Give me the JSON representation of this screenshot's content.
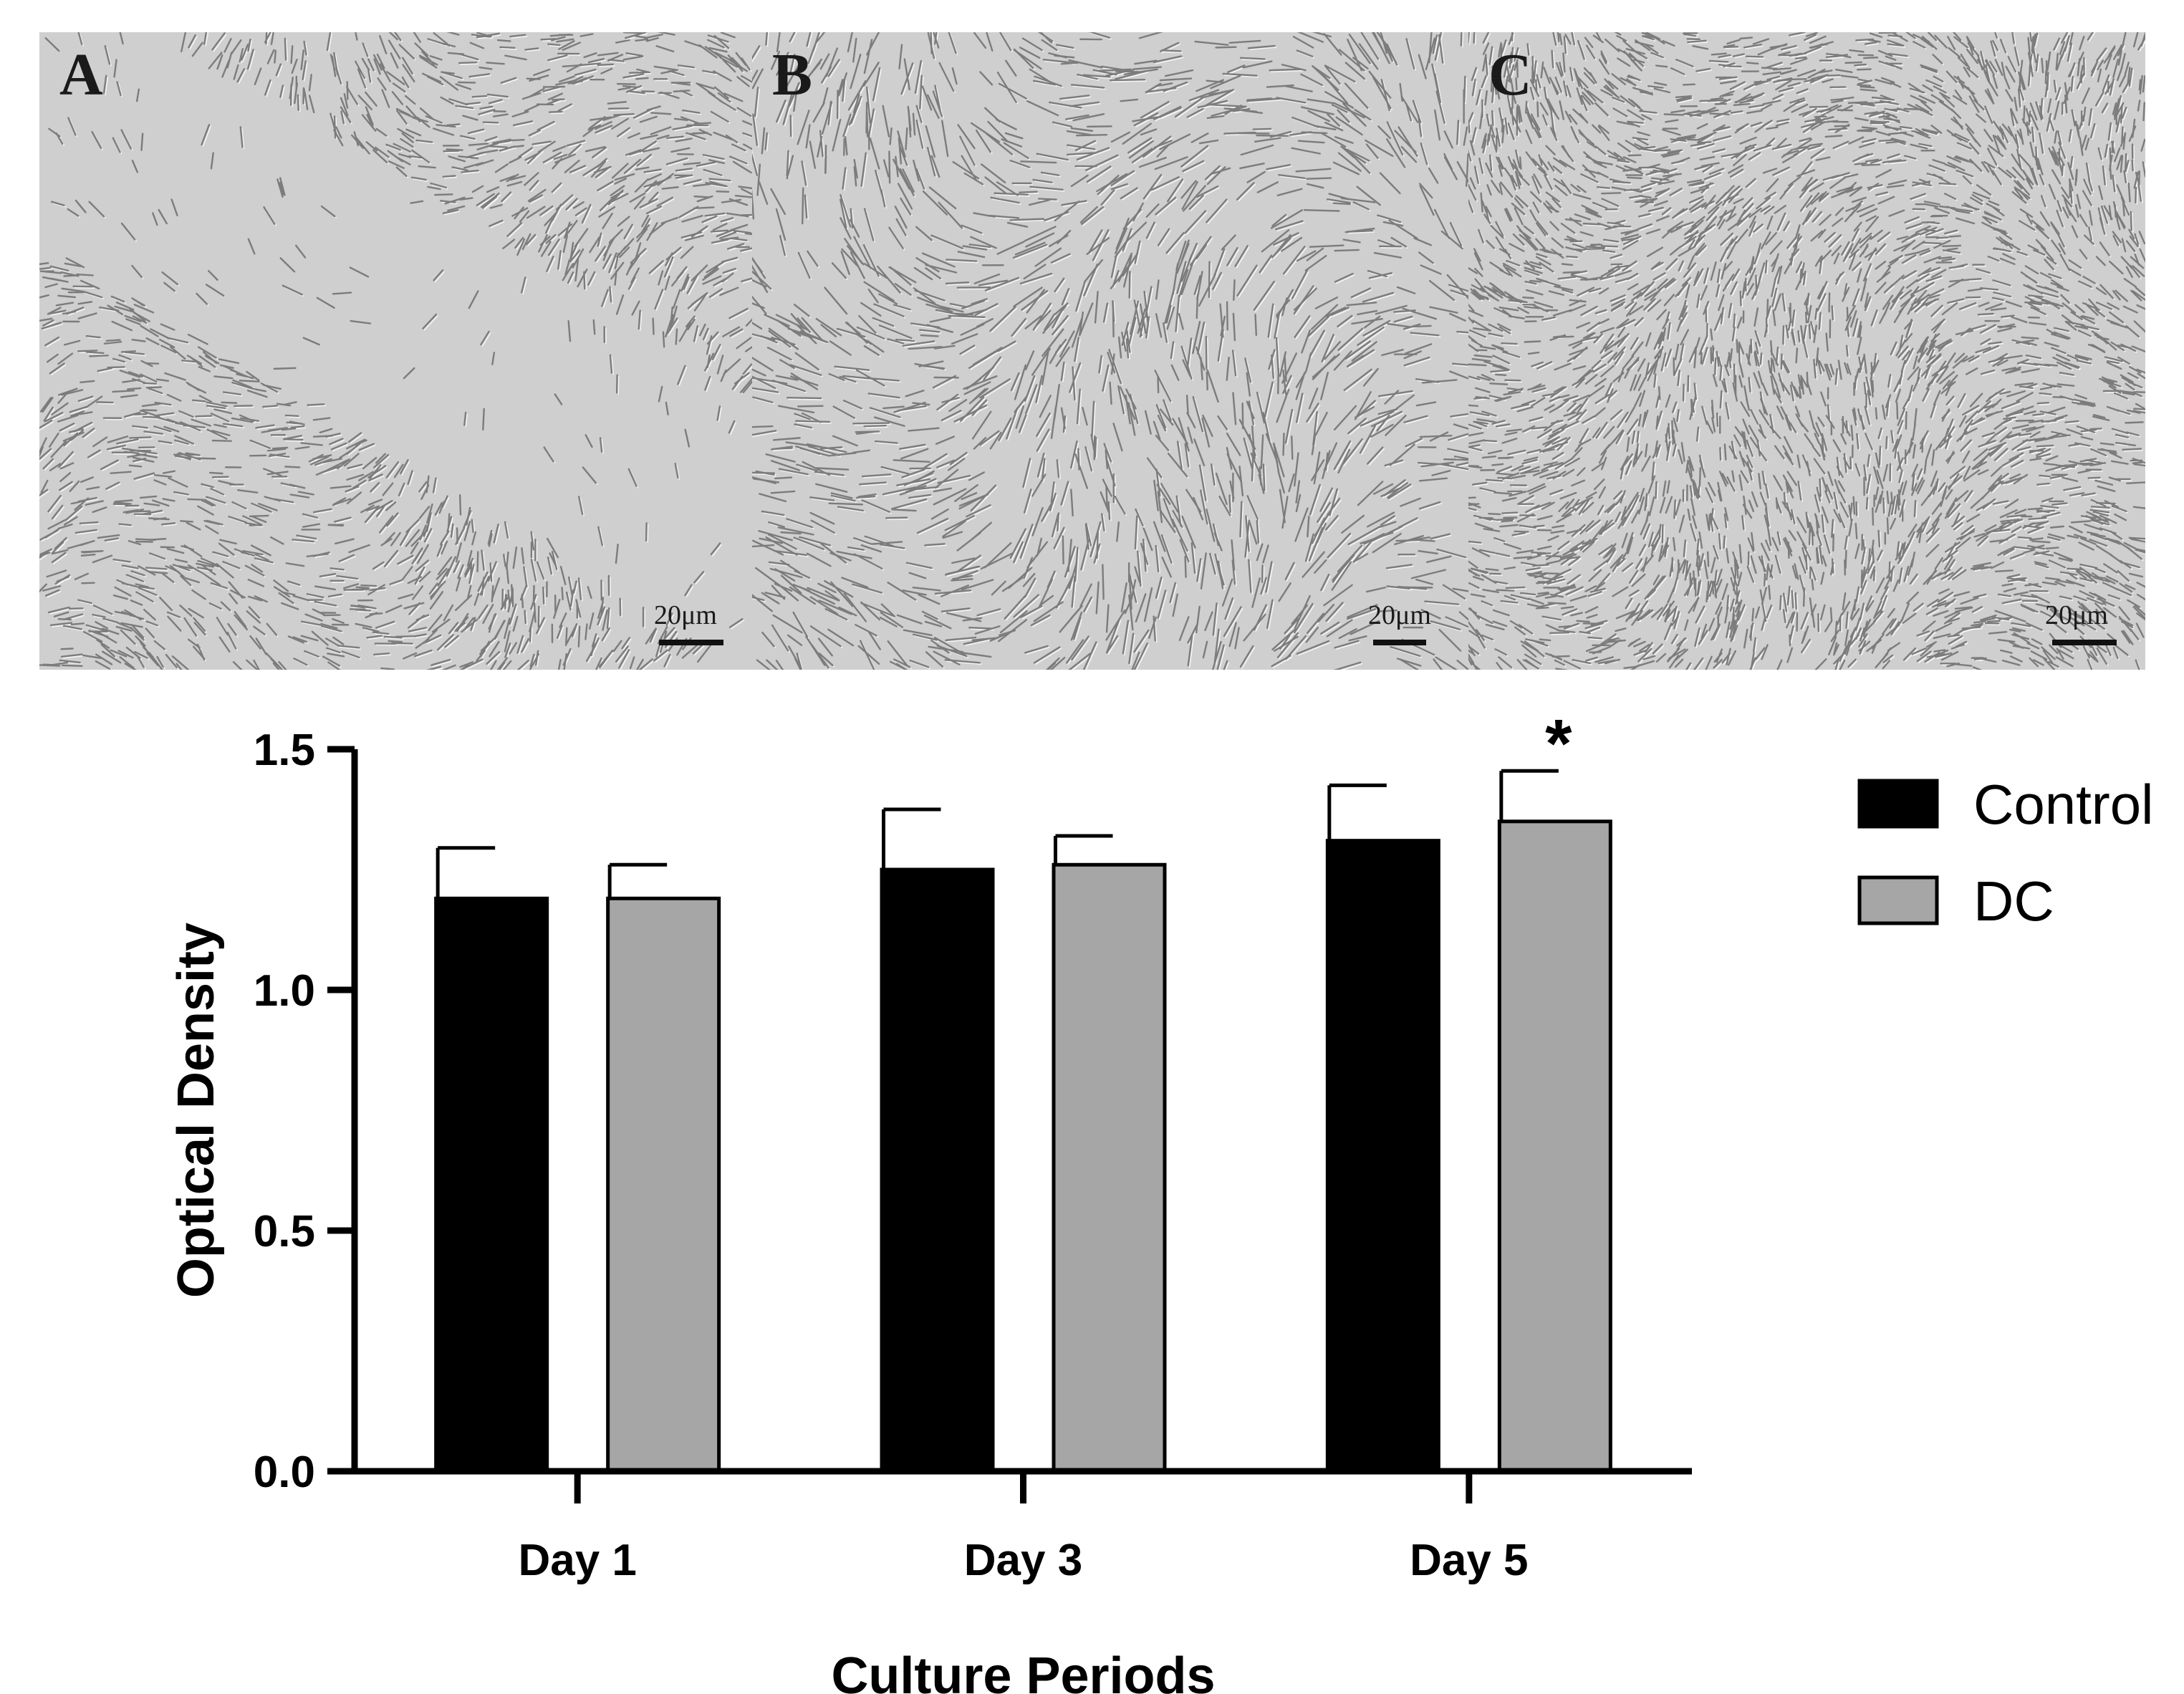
{
  "panels": [
    {
      "letter": "A",
      "scale_label": "20μm"
    },
    {
      "letter": "B",
      "scale_label": "20μm"
    },
    {
      "letter": "C",
      "scale_label": "20μm"
    }
  ],
  "chart_data": {
    "type": "bar",
    "categories": [
      "Day 1",
      "Day 3",
      "Day 5"
    ],
    "series": [
      {
        "name": "Control",
        "values": [
          1.19,
          1.25,
          1.31
        ],
        "errors": [
          0.105,
          0.125,
          0.115
        ],
        "color": "#000000"
      },
      {
        "name": "DC",
        "values": [
          1.19,
          1.26,
          1.35
        ],
        "errors": [
          0.07,
          0.06,
          0.105
        ],
        "color": "#a6a6a6"
      }
    ],
    "title": "",
    "xlabel": "Culture Periods",
    "ylabel": "Optical Density",
    "ylim": [
      0,
      1.5
    ],
    "yticks": [
      "0.0",
      "0.5",
      "1.0",
      "1.5"
    ],
    "grid": false,
    "legend": "right",
    "annotations": [
      {
        "category": "Day 5",
        "series": "DC",
        "text": "*"
      }
    ]
  }
}
